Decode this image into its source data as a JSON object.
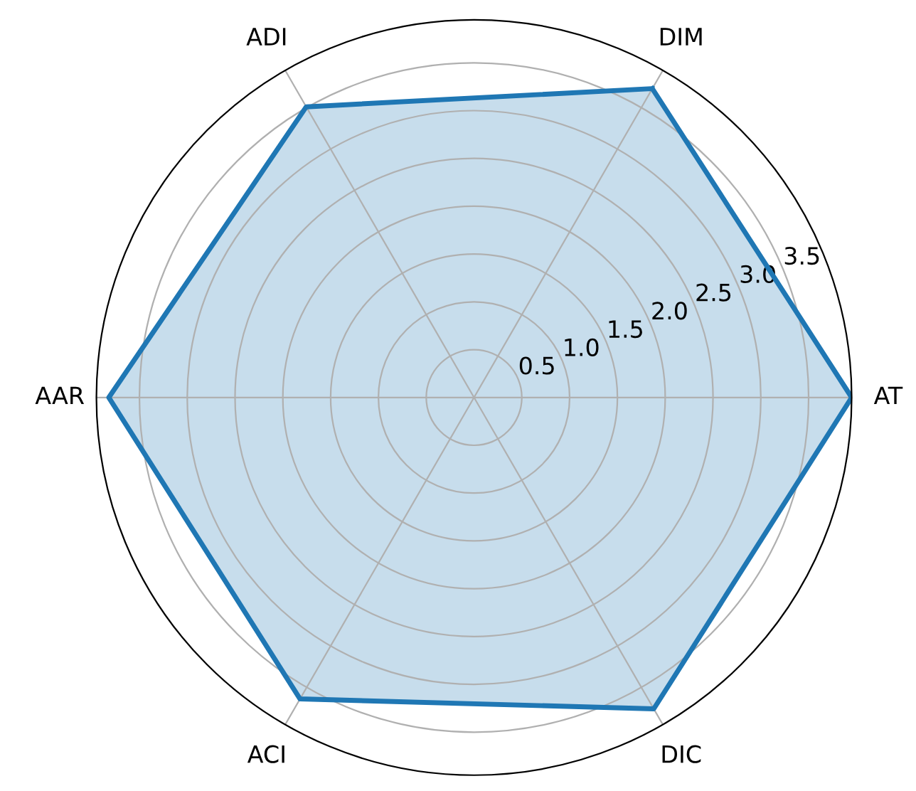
{
  "chart_data": {
    "type": "radar",
    "categories": [
      "DIM",
      "AT",
      "DIC",
      "ACI",
      "AAR",
      "ADI"
    ],
    "series": [
      {
        "color": "#1f77b4",
        "values": [
          3.73,
          3.95,
          3.76,
          3.64,
          3.82,
          3.51
        ]
      }
    ],
    "ylim": [
      0,
      3.95
    ],
    "yticks": [
      {
        "value": 0.5,
        "label": "0.5"
      },
      {
        "value": 1,
        "label": "1.0"
      },
      {
        "value": 1.5,
        "label": "1.5"
      },
      {
        "value": 2,
        "label": "2.0"
      },
      {
        "value": 2.5,
        "label": "2.5"
      },
      {
        "value": 3,
        "label": "3.0"
      },
      {
        "value": 3.5,
        "label": "3.5"
      }
    ],
    "grid": true
  }
}
